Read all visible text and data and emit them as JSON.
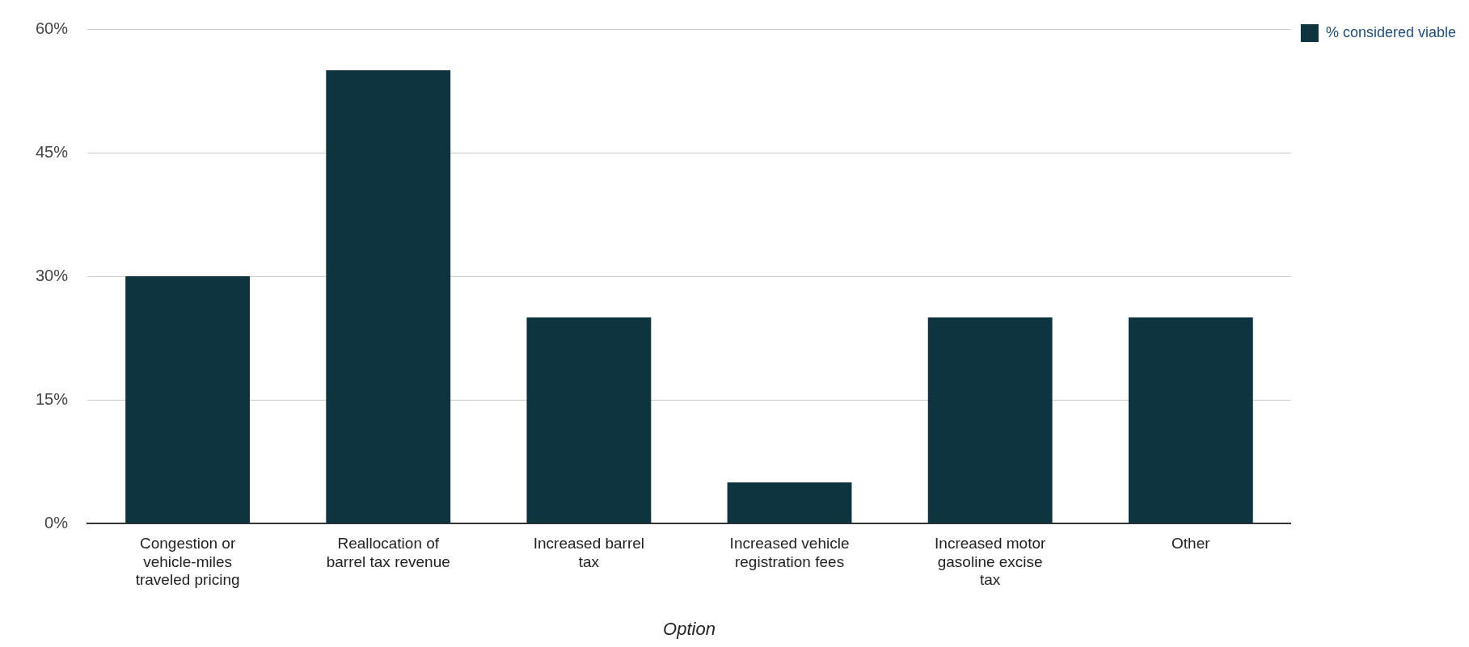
{
  "chart_data": {
    "type": "bar",
    "xlabel": "Option",
    "categories": [
      "Congestion or vehicle-miles traveled pricing",
      "Reallocation of barrel tax revenue",
      "Increased barrel tax",
      "Increased vehicle registration fees",
      "Increased motor gasoline excise tax",
      "Other"
    ],
    "series": [
      {
        "name": "% considered viable",
        "color": "#0e3440",
        "values": [
          30,
          55,
          25,
          5,
          25,
          25
        ]
      }
    ],
    "ylim": [
      0,
      60
    ],
    "yticks": [
      {
        "value": 0,
        "label": "0%"
      },
      {
        "value": 15,
        "label": "15%"
      },
      {
        "value": 30,
        "label": "30%"
      },
      {
        "value": 45,
        "label": "45%"
      },
      {
        "value": 60,
        "label": "60%"
      }
    ],
    "grid": "y",
    "legend": "top right"
  }
}
